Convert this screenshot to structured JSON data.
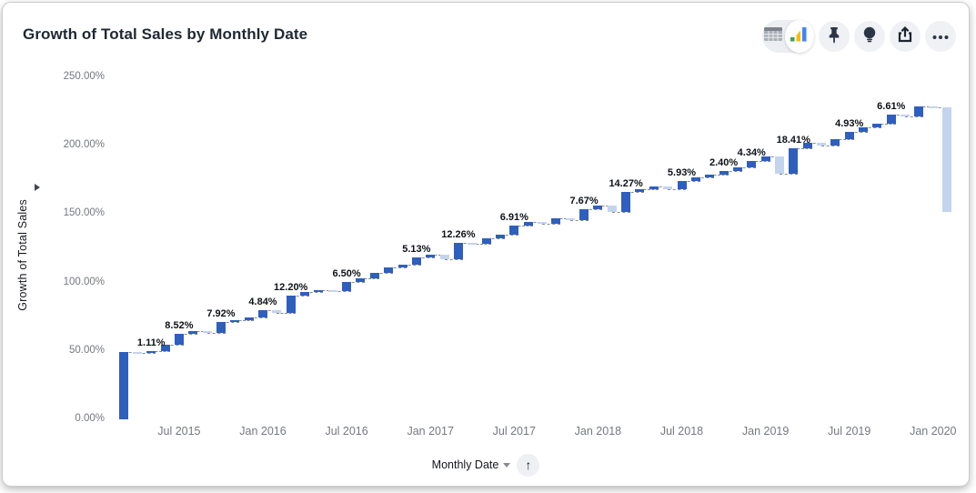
{
  "header": {
    "title": "Growth of Total Sales by Monthly Date"
  },
  "toolbar": {
    "view_toggle": {
      "options": [
        "table",
        "chart"
      ],
      "selected": "chart"
    },
    "buttons": [
      {
        "name": "pin",
        "icon": "pin-icon"
      },
      {
        "name": "insights",
        "icon": "lightbulb-icon"
      },
      {
        "name": "share",
        "icon": "share-icon"
      },
      {
        "name": "more",
        "icon": "ellipsis-icon"
      }
    ]
  },
  "x_axis_control": {
    "label": "Monthly Date",
    "sort_arrow": "↑"
  },
  "chart_data": {
    "type": "bar",
    "subtype": "waterfall",
    "title": "Growth of Total Sales by Monthly Date",
    "xlabel": "Monthly Date",
    "ylabel": "Growth of Total Sales",
    "ylim": [
      0,
      250
    ],
    "grid": false,
    "legend": "none",
    "colors": {
      "increase": "#2e5fbe",
      "decrease": "#c3d4ee"
    },
    "y_ticks": [
      {
        "label": "0.00%",
        "value": 0
      },
      {
        "label": "50.00%",
        "value": 50
      },
      {
        "label": "100.00%",
        "value": 100
      },
      {
        "label": "150.00%",
        "value": 150
      },
      {
        "label": "200.00%",
        "value": 200
      },
      {
        "label": "250.00%",
        "value": 250
      }
    ],
    "x_ticks": [
      {
        "label": "Jul 2015",
        "index": 4
      },
      {
        "label": "Jan 2016",
        "index": 10
      },
      {
        "label": "Jul 2016",
        "index": 16
      },
      {
        "label": "Jan 2017",
        "index": 22
      },
      {
        "label": "Jul 2017",
        "index": 28
      },
      {
        "label": "Jan 2018",
        "index": 34
      },
      {
        "label": "Jul 2018",
        "index": 40
      },
      {
        "label": "Jan 2019",
        "index": 46
      },
      {
        "label": "Jul 2019",
        "index": 52
      },
      {
        "label": "Jan 2020",
        "index": 58
      }
    ],
    "bars": [
      {
        "month": "Mar 2015",
        "delta": 49.2,
        "type": "initial"
      },
      {
        "month": "Apr 2015",
        "delta": -0.6,
        "type": "decrease"
      },
      {
        "month": "May 2015",
        "delta": 1.11,
        "type": "increase",
        "label": "1.11%"
      },
      {
        "month": "Jun 2015",
        "delta": 4.5,
        "type": "increase"
      },
      {
        "month": "Jul 2015",
        "delta": 8.52,
        "type": "increase",
        "label": "8.52%"
      },
      {
        "month": "Aug 2015",
        "delta": 1.8,
        "type": "increase"
      },
      {
        "month": "Sep 2015",
        "delta": -1.2,
        "type": "decrease"
      },
      {
        "month": "Oct 2015",
        "delta": 7.92,
        "type": "increase",
        "label": "7.92%"
      },
      {
        "month": "Nov 2015",
        "delta": 1.5,
        "type": "increase"
      },
      {
        "month": "Dec 2015",
        "delta": 2.0,
        "type": "increase"
      },
      {
        "month": "Jan 2016",
        "delta": 4.84,
        "type": "increase",
        "label": "4.84%"
      },
      {
        "month": "Feb 2016",
        "delta": -1.5,
        "type": "decrease"
      },
      {
        "month": "Mar 2016",
        "delta": 12.2,
        "type": "increase",
        "label": "12.20%"
      },
      {
        "month": "Apr 2016",
        "delta": 2.5,
        "type": "increase"
      },
      {
        "month": "May 2016",
        "delta": 1.8,
        "type": "increase"
      },
      {
        "month": "Jun 2016",
        "delta": -1.0,
        "type": "decrease"
      },
      {
        "month": "Jul 2016",
        "delta": 6.5,
        "type": "increase",
        "label": "6.50%"
      },
      {
        "month": "Aug 2016",
        "delta": 3.2,
        "type": "increase"
      },
      {
        "month": "Sep 2016",
        "delta": 4.0,
        "type": "increase"
      },
      {
        "month": "Oct 2016",
        "delta": 3.5,
        "type": "increase"
      },
      {
        "month": "Nov 2016",
        "delta": 2.5,
        "type": "increase"
      },
      {
        "month": "Dec 2016",
        "delta": 5.13,
        "type": "increase",
        "label": "5.13%"
      },
      {
        "month": "Jan 2017",
        "delta": 2.0,
        "type": "increase"
      },
      {
        "month": "Feb 2017",
        "delta": -3.5,
        "type": "decrease"
      },
      {
        "month": "Mar 2017",
        "delta": 12.26,
        "type": "increase",
        "label": "12.26%"
      },
      {
        "month": "Apr 2017",
        "delta": -1.0,
        "type": "decrease"
      },
      {
        "month": "May 2017",
        "delta": 4.0,
        "type": "increase"
      },
      {
        "month": "Jun 2017",
        "delta": 2.5,
        "type": "increase"
      },
      {
        "month": "Jul 2017",
        "delta": 6.91,
        "type": "increase",
        "label": "6.91%"
      },
      {
        "month": "Aug 2017",
        "delta": 3.0,
        "type": "increase"
      },
      {
        "month": "Sep 2017",
        "delta": -1.5,
        "type": "decrease"
      },
      {
        "month": "Oct 2017",
        "delta": 4.0,
        "type": "increase"
      },
      {
        "month": "Nov 2017",
        "delta": -1.5,
        "type": "decrease"
      },
      {
        "month": "Dec 2017",
        "delta": 7.67,
        "type": "increase",
        "label": "7.67%"
      },
      {
        "month": "Jan 2018",
        "delta": 3.0,
        "type": "increase"
      },
      {
        "month": "Feb 2018",
        "delta": -4.5,
        "type": "decrease"
      },
      {
        "month": "Mar 2018",
        "delta": 14.27,
        "type": "increase",
        "label": "14.27%"
      },
      {
        "month": "Apr 2018",
        "delta": 2.5,
        "type": "increase"
      },
      {
        "month": "May 2018",
        "delta": 2.0,
        "type": "increase"
      },
      {
        "month": "Jun 2018",
        "delta": -2.0,
        "type": "decrease"
      },
      {
        "month": "Jul 2018",
        "delta": 5.93,
        "type": "increase",
        "label": "5.93%"
      },
      {
        "month": "Aug 2018",
        "delta": 2.5,
        "type": "increase"
      },
      {
        "month": "Sep 2018",
        "delta": 2.0,
        "type": "increase"
      },
      {
        "month": "Oct 2018",
        "delta": 2.4,
        "type": "increase",
        "label": "2.40%"
      },
      {
        "month": "Nov 2018",
        "delta": 3.0,
        "type": "increase"
      },
      {
        "month": "Dec 2018",
        "delta": 4.34,
        "type": "increase",
        "label": "4.34%"
      },
      {
        "month": "Jan 2019",
        "delta": 3.5,
        "type": "increase"
      },
      {
        "month": "Feb 2019",
        "delta": -12.5,
        "type": "decrease"
      },
      {
        "month": "Mar 2019",
        "delta": 18.41,
        "type": "increase",
        "label": "18.41%"
      },
      {
        "month": "Apr 2019",
        "delta": 4.0,
        "type": "increase"
      },
      {
        "month": "May 2019",
        "delta": -2.0,
        "type": "decrease"
      },
      {
        "month": "Jun 2019",
        "delta": 5.0,
        "type": "increase"
      },
      {
        "month": "Jul 2019",
        "delta": 4.93,
        "type": "increase",
        "label": "4.93%"
      },
      {
        "month": "Aug 2019",
        "delta": 3.5,
        "type": "increase"
      },
      {
        "month": "Sep 2019",
        "delta": 2.5,
        "type": "increase"
      },
      {
        "month": "Oct 2019",
        "delta": 6.61,
        "type": "increase",
        "label": "6.61%"
      },
      {
        "month": "Nov 2019",
        "delta": -1.5,
        "type": "decrease"
      },
      {
        "month": "Dec 2019",
        "delta": 7.5,
        "type": "increase"
      },
      {
        "month": "Jan 2020",
        "delta": -0.5,
        "type": "decrease"
      },
      {
        "month": "Feb 2020",
        "delta": -76.6,
        "type": "final"
      }
    ]
  }
}
